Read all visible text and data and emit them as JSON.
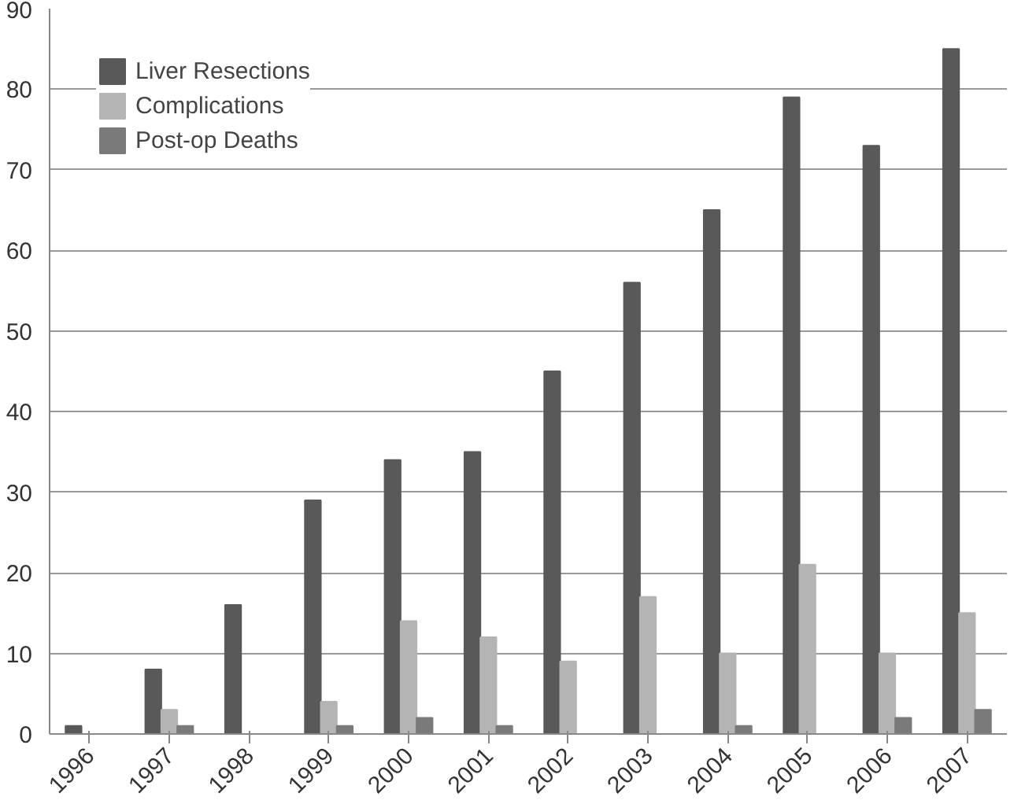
{
  "chart_data": {
    "type": "bar",
    "categories": [
      "1996",
      "1997",
      "1998",
      "1999",
      "2000",
      "2001",
      "2002",
      "2003",
      "2004",
      "2005",
      "2006",
      "2007"
    ],
    "series": [
      {
        "name": "Liver Resections",
        "color": "#595959",
        "values": [
          1,
          8,
          16,
          29,
          34,
          35,
          45,
          56,
          65,
          79,
          73,
          85
        ]
      },
      {
        "name": "Complications",
        "color": "#b4b4b4",
        "values": [
          0,
          3,
          0,
          4,
          14,
          12,
          9,
          17,
          10,
          21,
          10,
          15
        ]
      },
      {
        "name": "Post-op Deaths",
        "color": "#7a7a7a",
        "values": [
          0,
          1,
          0,
          1,
          2,
          1,
          0,
          0,
          1,
          0,
          2,
          3
        ]
      }
    ],
    "ylim": [
      0,
      90
    ],
    "yticks": [
      0,
      10,
      20,
      30,
      40,
      50,
      60,
      70,
      80,
      90
    ],
    "grid": "y",
    "legend": "top left"
  }
}
